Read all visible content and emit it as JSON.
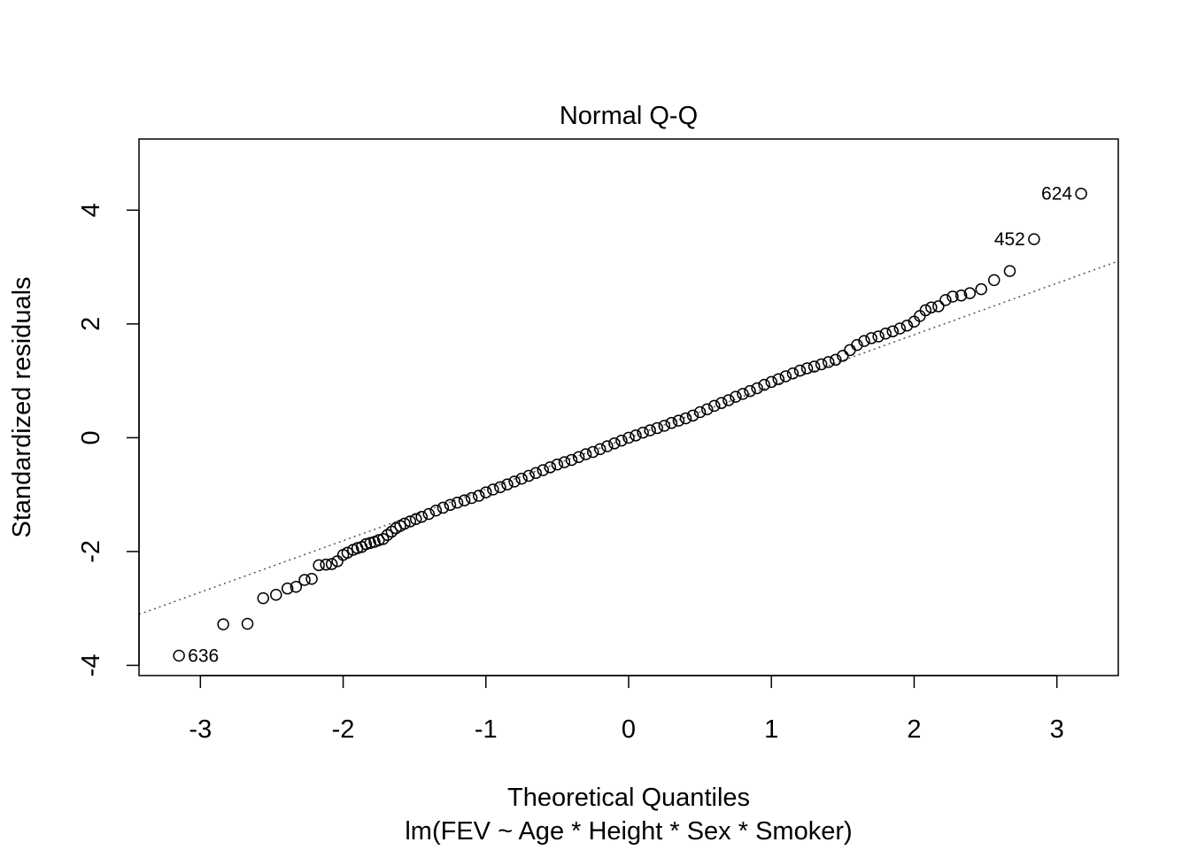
{
  "chart_data": {
    "type": "scatter",
    "title": "Normal Q-Q",
    "xlabel": "Theoretical Quantiles",
    "ylabel": "Standardized residuals",
    "subtitle": "lm(FEV ~ Age * Height * Sex * Smoker)",
    "xlim": [
      -3.43,
      3.43
    ],
    "ylim": [
      -4.18,
      5.25
    ],
    "x_ticks": [
      -3,
      -2,
      -1,
      0,
      1,
      2,
      3
    ],
    "y_ticks": [
      -4,
      -2,
      0,
      2,
      4
    ],
    "grid": false,
    "reference_line": {
      "style": "dotted",
      "color": "#555555",
      "slope": 0.905,
      "intercept": 0.0
    },
    "points": [
      [
        -3.15,
        -3.83
      ],
      [
        -2.84,
        -3.28
      ],
      [
        -2.67,
        -3.27
      ],
      [
        -2.56,
        -2.82
      ],
      [
        -2.47,
        -2.76
      ],
      [
        -2.39,
        -2.65
      ],
      [
        -2.33,
        -2.62
      ],
      [
        -2.27,
        -2.5
      ],
      [
        -2.22,
        -2.48
      ],
      [
        -2.17,
        -2.24
      ],
      [
        -2.12,
        -2.23
      ],
      [
        -2.08,
        -2.22
      ],
      [
        -2.04,
        -2.17
      ],
      [
        -2.0,
        -2.06
      ],
      [
        -1.97,
        -2.02
      ],
      [
        -1.93,
        -1.97
      ],
      [
        -1.9,
        -1.94
      ],
      [
        -1.87,
        -1.92
      ],
      [
        -1.84,
        -1.87
      ],
      [
        -1.81,
        -1.85
      ],
      [
        -1.78,
        -1.83
      ],
      [
        -1.75,
        -1.8
      ],
      [
        -1.72,
        -1.78
      ],
      [
        -1.69,
        -1.71
      ],
      [
        -1.66,
        -1.65
      ],
      [
        -1.63,
        -1.59
      ],
      [
        -1.6,
        -1.55
      ],
      [
        -1.57,
        -1.51
      ],
      [
        -1.53,
        -1.47
      ],
      [
        -1.49,
        -1.43
      ],
      [
        -1.45,
        -1.39
      ],
      [
        -1.4,
        -1.34
      ],
      [
        -1.35,
        -1.28
      ],
      [
        -1.3,
        -1.23
      ],
      [
        -1.25,
        -1.18
      ],
      [
        -1.2,
        -1.14
      ],
      [
        -1.15,
        -1.1
      ],
      [
        -1.1,
        -1.06
      ],
      [
        -1.05,
        -1.02
      ],
      [
        -1.0,
        -0.96
      ],
      [
        -0.95,
        -0.91
      ],
      [
        -0.9,
        -0.87
      ],
      [
        -0.85,
        -0.82
      ],
      [
        -0.8,
        -0.77
      ],
      [
        -0.75,
        -0.72
      ],
      [
        -0.7,
        -0.67
      ],
      [
        -0.65,
        -0.62
      ],
      [
        -0.6,
        -0.57
      ],
      [
        -0.55,
        -0.52
      ],
      [
        -0.5,
        -0.47
      ],
      [
        -0.45,
        -0.43
      ],
      [
        -0.4,
        -0.39
      ],
      [
        -0.35,
        -0.34
      ],
      [
        -0.3,
        -0.29
      ],
      [
        -0.25,
        -0.25
      ],
      [
        -0.2,
        -0.2
      ],
      [
        -0.15,
        -0.15
      ],
      [
        -0.1,
        -0.1
      ],
      [
        -0.05,
        -0.05
      ],
      [
        0.0,
        0.0
      ],
      [
        0.05,
        0.04
      ],
      [
        0.1,
        0.09
      ],
      [
        0.15,
        0.13
      ],
      [
        0.2,
        0.17
      ],
      [
        0.25,
        0.21
      ],
      [
        0.3,
        0.26
      ],
      [
        0.35,
        0.3
      ],
      [
        0.4,
        0.34
      ],
      [
        0.45,
        0.39
      ],
      [
        0.5,
        0.45
      ],
      [
        0.55,
        0.5
      ],
      [
        0.6,
        0.56
      ],
      [
        0.65,
        0.61
      ],
      [
        0.7,
        0.66
      ],
      [
        0.75,
        0.72
      ],
      [
        0.8,
        0.77
      ],
      [
        0.85,
        0.82
      ],
      [
        0.9,
        0.87
      ],
      [
        0.95,
        0.93
      ],
      [
        1.0,
        0.98
      ],
      [
        1.05,
        1.03
      ],
      [
        1.1,
        1.08
      ],
      [
        1.15,
        1.13
      ],
      [
        1.2,
        1.18
      ],
      [
        1.25,
        1.22
      ],
      [
        1.3,
        1.25
      ],
      [
        1.35,
        1.29
      ],
      [
        1.4,
        1.33
      ],
      [
        1.45,
        1.37
      ],
      [
        1.5,
        1.44
      ],
      [
        1.55,
        1.54
      ],
      [
        1.6,
        1.63
      ],
      [
        1.65,
        1.7
      ],
      [
        1.7,
        1.75
      ],
      [
        1.75,
        1.78
      ],
      [
        1.8,
        1.83
      ],
      [
        1.85,
        1.87
      ],
      [
        1.9,
        1.92
      ],
      [
        1.95,
        1.97
      ],
      [
        2.0,
        2.04
      ],
      [
        2.04,
        2.14
      ],
      [
        2.08,
        2.24
      ],
      [
        2.12,
        2.29
      ],
      [
        2.17,
        2.31
      ],
      [
        2.22,
        2.42
      ],
      [
        2.27,
        2.48
      ],
      [
        2.33,
        2.5
      ],
      [
        2.39,
        2.54
      ],
      [
        2.47,
        2.61
      ],
      [
        2.56,
        2.77
      ],
      [
        2.67,
        2.93
      ],
      [
        2.84,
        3.49
      ],
      [
        3.17,
        4.29
      ]
    ],
    "point_labels": [
      {
        "text": "624",
        "x": 3.17,
        "y": 4.29,
        "side": "left"
      },
      {
        "text": "452",
        "x": 2.84,
        "y": 3.49,
        "side": "left"
      },
      {
        "text": "636",
        "x": -3.15,
        "y": -3.83,
        "side": "right"
      }
    ]
  }
}
